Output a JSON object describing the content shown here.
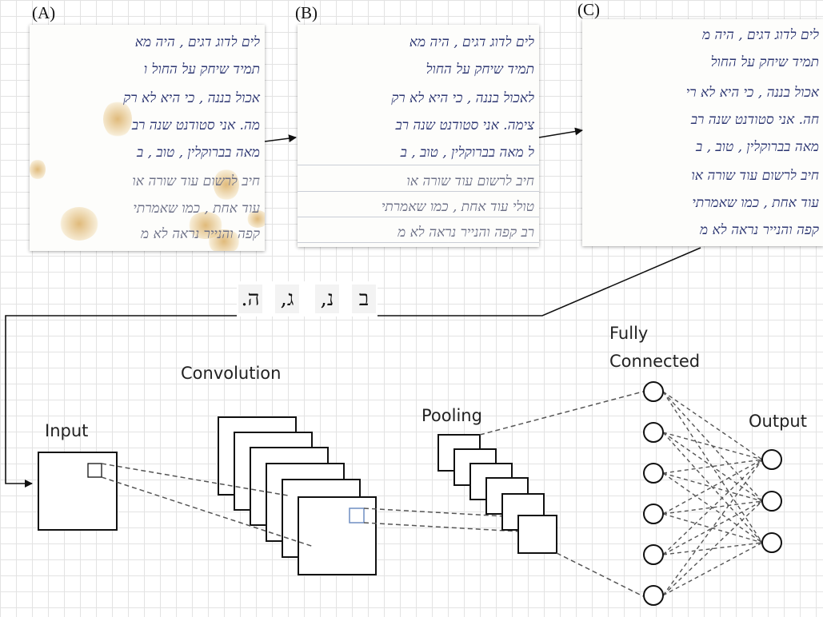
{
  "panels": [
    {
      "label": "(A)",
      "lines": [
        "לים לדוג דגים , היה מא",
        "תמיד שיחק על החול ו",
        "אכול בננה , כי היא לא רק",
        "מה. אני סטודנט שנה רב",
        "מאה בברוקלין , טוב , ב",
        "חיב לרשום עוד שורה או",
        "עוד אחת , כמו שאמרתי",
        "קפה והנייר נראה לא מ"
      ]
    },
    {
      "label": "(B)",
      "lines": [
        "לים לדוג דגים , היה מא",
        "תמיד שיחק על החול",
        "לאכול בננה , כי היא לא רק",
        "צימה. אני סטודנט שנה רב",
        "ל מאה בברוקלין , טוב , ב",
        "חיב לרשום עוד שורה או",
        "טולי עוד אחת , כמו שאמרתי",
        "רב קפה והנייר נראה לא מ"
      ]
    },
    {
      "label": "(C)",
      "lines": [
        "לים לדוג דגים , היה מ",
        "תמיד שיחק על החול",
        "אכול בננה , כי היא לא רי",
        "חה. אני סטודנט שנה רב",
        "מאה בברוקלין , טוב , ב",
        "חיב לרשום עוד שורה או",
        "עוד אחת , כמו שאמרתי",
        "קפה והנייר נראה לא מ"
      ]
    }
  ],
  "characters": [
    "ב",
    "נ,",
    "ג,",
    "ה."
  ],
  "cnn": {
    "input_label": "Input",
    "convolution_label": "Convolution",
    "pooling_label": "Pooling",
    "fully_connected_label_line1": "Fully",
    "fully_connected_label_line2": "Connected",
    "output_label": "Output",
    "fully_connected_nodes": 6,
    "output_nodes": 3
  },
  "colors": {
    "ink": "#2a3470",
    "stain": "#d6a450",
    "diagram_line": "#111111",
    "dashed": "#555555",
    "receptive_field_conv": "#6f8ec2"
  }
}
